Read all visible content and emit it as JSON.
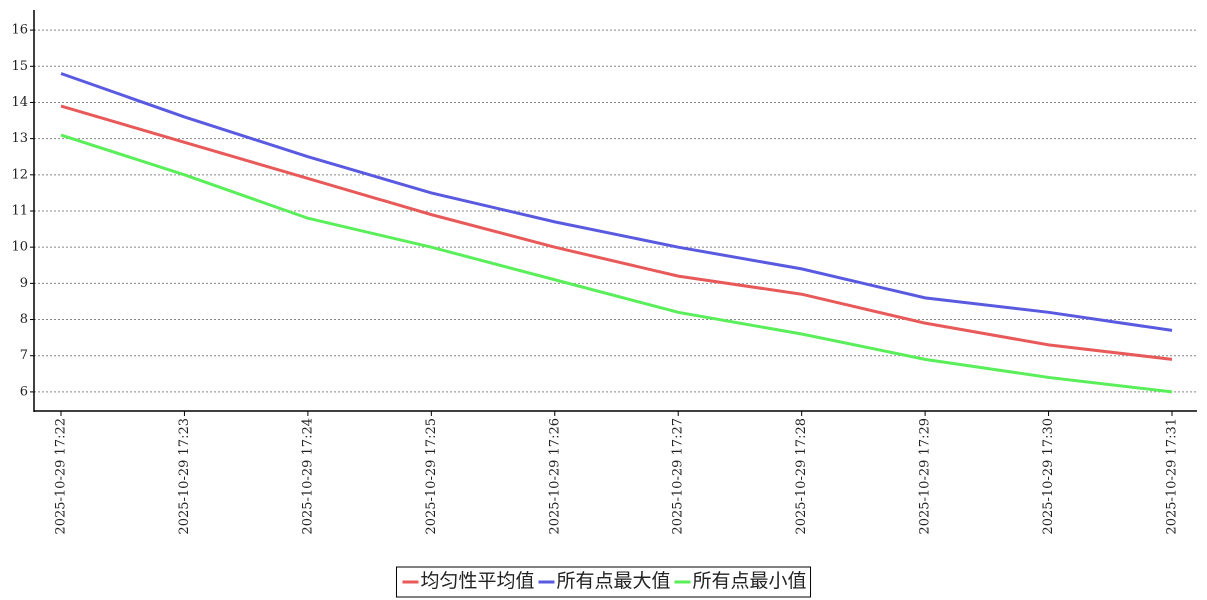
{
  "chart_data": {
    "type": "line",
    "categories": [
      "2025-10-29 17:22",
      "2025-10-29 17:23",
      "2025-10-29 17:24",
      "2025-10-29 17:25",
      "2025-10-29 17:26",
      "2025-10-29 17:27",
      "2025-10-29 17:28",
      "2025-10-29 17:29",
      "2025-10-29 17:30",
      "2025-10-29 17:31"
    ],
    "series": [
      {
        "name": "均匀性平均值",
        "color": "#e85a5a",
        "values": [
          13.9,
          12.9,
          11.9,
          10.9,
          10.0,
          9.2,
          8.7,
          7.9,
          7.3,
          6.9
        ]
      },
      {
        "name": "所有点最大值",
        "color": "#5a5ae0",
        "values": [
          14.8,
          13.6,
          12.5,
          11.5,
          10.7,
          10.0,
          9.4,
          8.6,
          8.2,
          7.7
        ]
      },
      {
        "name": "所有点最小值",
        "color": "#5aee5a",
        "values": [
          13.1,
          12.0,
          10.8,
          10.0,
          9.1,
          8.2,
          7.6,
          6.9,
          6.4,
          6.0
        ]
      }
    ],
    "ylim": [
      5.5,
      16.5
    ],
    "yticks": [
      6,
      7,
      8,
      9,
      10,
      11,
      12,
      13,
      14,
      15,
      16
    ],
    "grid": true,
    "legend": "bottom"
  }
}
